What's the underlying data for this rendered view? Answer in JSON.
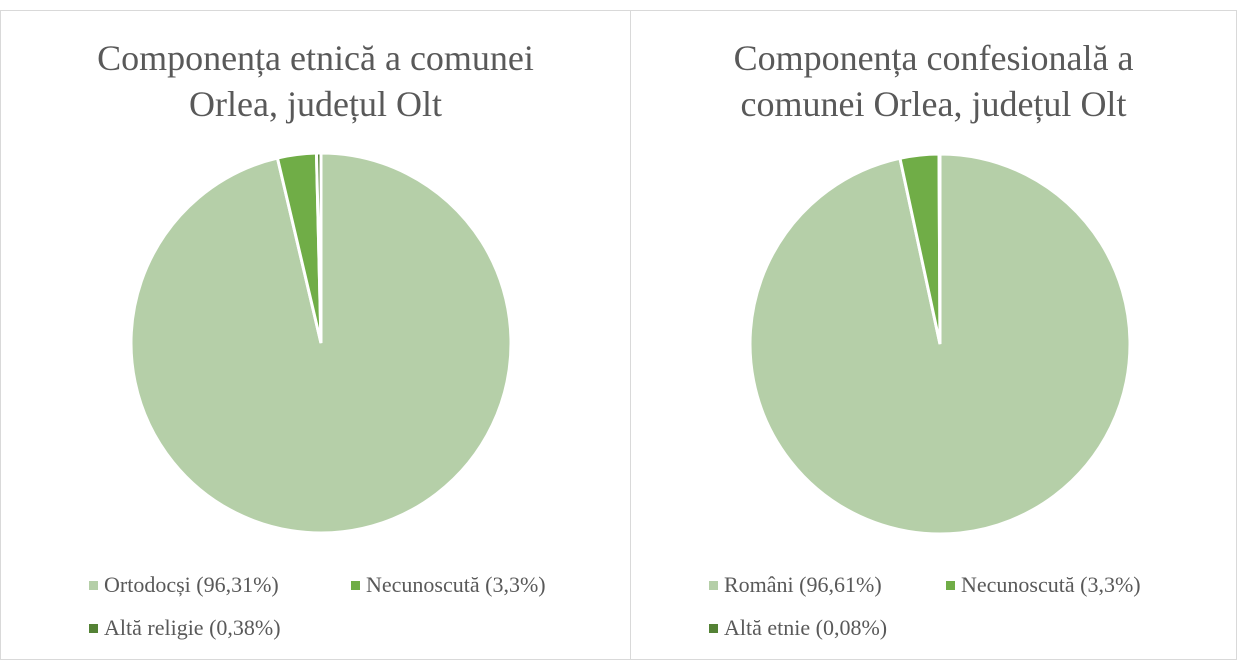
{
  "chart_data": [
    {
      "type": "pie",
      "title": "Componența etnică a comunei Orlea, județul Olt",
      "categories": [
        "Ortodocși (96,31%)",
        "Necunoscută (3,3%)",
        "Altă religie (0,38%)"
      ],
      "values": [
        96.31,
        3.3,
        0.38
      ],
      "colors": [
        "#b5cfa8",
        "#70ad47",
        "#548235"
      ],
      "legend": "bottom"
    },
    {
      "type": "pie",
      "title": "Componența confesională a comunei Orlea, județul Olt",
      "categories": [
        "Români (96,61%)",
        "Necunoscută (3,3%)",
        "Altă etnie (0,08%)"
      ],
      "values": [
        96.61,
        3.3,
        0.08
      ],
      "colors": [
        "#b5cfa8",
        "#70ad47",
        "#548235"
      ],
      "legend": "bottom"
    }
  ]
}
